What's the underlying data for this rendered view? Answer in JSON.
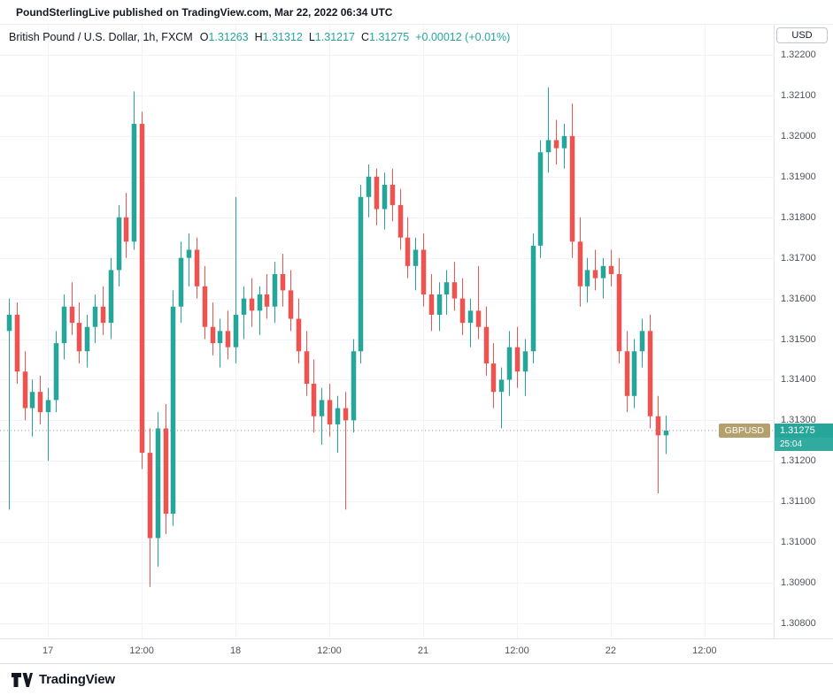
{
  "attribution_bar": {
    "text": "PoundSterlingLive published on TradingView.com, Mar 22, 2022 06:34 UTC"
  },
  "legend": {
    "title": "British Pound / U.S. Dollar, 1h, FXCM",
    "ohlc": [
      {
        "label": "O",
        "value": "1.31263"
      },
      {
        "label": "H",
        "value": "1.31312"
      },
      {
        "label": "L",
        "value": "1.31217"
      },
      {
        "label": "C",
        "value": "1.31275"
      }
    ],
    "change": "+0.00012 (+0.01%)"
  },
  "price_axis": {
    "currency_button": "USD"
  },
  "price_label": {
    "symbol": "GBPUSD",
    "price": "1.31275",
    "countdown": "25:04"
  },
  "footer": {
    "logo_text": "TradingView"
  },
  "colors": {
    "up": "#26a69a",
    "down": "#ef5350",
    "grid": "#f0f3fa",
    "axis_text": "#50535e",
    "text": "#131722",
    "symbol_badge_bg": "#b3a06d",
    "price_line": "#9598a1",
    "border": "#e0e3eb"
  },
  "chart_data": {
    "type": "candlestick",
    "title": "British Pound / U.S. Dollar",
    "symbol": "GBPUSD",
    "interval": "1h",
    "exchange": "FXCM",
    "grid": true,
    "ylim": [
      1.308,
      1.322
    ],
    "current_price": 1.31275,
    "y_ticks": [
      "1.32200",
      "1.32100",
      "1.32000",
      "1.31900",
      "1.31800",
      "1.31700",
      "1.31600",
      "1.31500",
      "1.31400",
      "1.31300",
      "1.31200",
      "1.31100",
      "1.31000",
      "1.30900",
      "1.30800"
    ],
    "x_ticks": [
      {
        "label": "17",
        "index": 5
      },
      {
        "label": "12:00",
        "index": 17
      },
      {
        "label": "18",
        "index": 29
      },
      {
        "label": "12:00",
        "index": 41
      },
      {
        "label": "21",
        "index": 53
      },
      {
        "label": "12:00",
        "index": 65
      },
      {
        "label": "22",
        "index": 77
      },
      {
        "label": "12:00",
        "index": 89
      }
    ],
    "candles_format": [
      "open",
      "high",
      "low",
      "close"
    ],
    "candles": [
      [
        1.3152,
        1.316,
        1.3108,
        1.3156
      ],
      [
        1.3156,
        1.3159,
        1.3139,
        1.3142
      ],
      [
        1.3142,
        1.3147,
        1.313,
        1.3133
      ],
      [
        1.3133,
        1.314,
        1.3126,
        1.3137
      ],
      [
        1.3137,
        1.3141,
        1.3129,
        1.3132
      ],
      [
        1.3132,
        1.3138,
        1.312,
        1.3135
      ],
      [
        1.3135,
        1.3152,
        1.3132,
        1.3149
      ],
      [
        1.3149,
        1.3161,
        1.3145,
        1.3158
      ],
      [
        1.3158,
        1.3164,
        1.3151,
        1.3154
      ],
      [
        1.3154,
        1.3159,
        1.3144,
        1.3147
      ],
      [
        1.3147,
        1.3156,
        1.3143,
        1.3153
      ],
      [
        1.3153,
        1.3161,
        1.3149,
        1.3158
      ],
      [
        1.3158,
        1.3163,
        1.3151,
        1.3154
      ],
      [
        1.3154,
        1.317,
        1.315,
        1.3167
      ],
      [
        1.3167,
        1.3183,
        1.3163,
        1.318
      ],
      [
        1.318,
        1.3186,
        1.317,
        1.3174
      ],
      [
        1.3174,
        1.3211,
        1.3172,
        1.3203
      ],
      [
        1.3203,
        1.3206,
        1.3118,
        1.3122
      ],
      [
        1.3122,
        1.3128,
        1.3089,
        1.3101
      ],
      [
        1.3101,
        1.3132,
        1.3094,
        1.3128
      ],
      [
        1.3128,
        1.3134,
        1.3102,
        1.3107
      ],
      [
        1.3107,
        1.3162,
        1.3104,
        1.3158
      ],
      [
        1.3158,
        1.3174,
        1.3154,
        1.317
      ],
      [
        1.317,
        1.3176,
        1.3163,
        1.3172
      ],
      [
        1.3172,
        1.3175,
        1.316,
        1.3163
      ],
      [
        1.3163,
        1.3168,
        1.315,
        1.3153
      ],
      [
        1.3153,
        1.3159,
        1.3146,
        1.3149
      ],
      [
        1.3149,
        1.3155,
        1.3143,
        1.3152
      ],
      [
        1.3152,
        1.3157,
        1.3145,
        1.3148
      ],
      [
        1.3148,
        1.3185,
        1.3144,
        1.3156
      ],
      [
        1.3156,
        1.3163,
        1.315,
        1.316
      ],
      [
        1.316,
        1.3165,
        1.3153,
        1.3157
      ],
      [
        1.3157,
        1.3163,
        1.3151,
        1.3161
      ],
      [
        1.3161,
        1.3166,
        1.3155,
        1.3158
      ],
      [
        1.3158,
        1.3169,
        1.3154,
        1.3166
      ],
      [
        1.3166,
        1.3171,
        1.3158,
        1.3162
      ],
      [
        1.3162,
        1.3167,
        1.3152,
        1.3155
      ],
      [
        1.3155,
        1.316,
        1.3144,
        1.3147
      ],
      [
        1.3147,
        1.3152,
        1.3136,
        1.3139
      ],
      [
        1.3139,
        1.3145,
        1.3127,
        1.3131
      ],
      [
        1.3131,
        1.3138,
        1.3124,
        1.3135
      ],
      [
        1.3135,
        1.3139,
        1.3126,
        1.3129
      ],
      [
        1.3129,
        1.3136,
        1.3122,
        1.3133
      ],
      [
        1.3133,
        1.3137,
        1.3108,
        1.313
      ],
      [
        1.313,
        1.315,
        1.3127,
        1.3147
      ],
      [
        1.3147,
        1.3188,
        1.3144,
        1.3185
      ],
      [
        1.3185,
        1.3193,
        1.318,
        1.319
      ],
      [
        1.319,
        1.3192,
        1.3178,
        1.3182
      ],
      [
        1.3182,
        1.3191,
        1.3177,
        1.3188
      ],
      [
        1.3188,
        1.3192,
        1.3179,
        1.3183
      ],
      [
        1.3183,
        1.3187,
        1.3172,
        1.3175
      ],
      [
        1.3175,
        1.318,
        1.3165,
        1.3168
      ],
      [
        1.3168,
        1.3175,
        1.3162,
        1.3172
      ],
      [
        1.3172,
        1.3176,
        1.3158,
        1.3161
      ],
      [
        1.3161,
        1.3166,
        1.3152,
        1.3156
      ],
      [
        1.3156,
        1.3164,
        1.3152,
        1.3161
      ],
      [
        1.3161,
        1.3167,
        1.3156,
        1.3164
      ],
      [
        1.3164,
        1.3169,
        1.3157,
        1.316
      ],
      [
        1.316,
        1.3165,
        1.3151,
        1.3154
      ],
      [
        1.3154,
        1.316,
        1.3148,
        1.3157
      ],
      [
        1.3157,
        1.3168,
        1.315,
        1.3153
      ],
      [
        1.3153,
        1.3158,
        1.3141,
        1.3144
      ],
      [
        1.3144,
        1.3149,
        1.3133,
        1.3137
      ],
      [
        1.3137,
        1.3143,
        1.3128,
        1.314
      ],
      [
        1.314,
        1.3152,
        1.3136,
        1.3148
      ],
      [
        1.3148,
        1.3153,
        1.3138,
        1.3142
      ],
      [
        1.3142,
        1.315,
        1.3136,
        1.3147
      ],
      [
        1.3147,
        1.3176,
        1.3144,
        1.3173
      ],
      [
        1.3173,
        1.3199,
        1.317,
        1.3196
      ],
      [
        1.3196,
        1.3212,
        1.3191,
        1.3199
      ],
      [
        1.3199,
        1.3204,
        1.3193,
        1.3197
      ],
      [
        1.3197,
        1.3203,
        1.3192,
        1.32
      ],
      [
        1.32,
        1.3208,
        1.317,
        1.3174
      ],
      [
        1.3174,
        1.318,
        1.3158,
        1.3163
      ],
      [
        1.3163,
        1.317,
        1.3159,
        1.3167
      ],
      [
        1.3167,
        1.3172,
        1.3162,
        1.3165
      ],
      [
        1.3165,
        1.317,
        1.316,
        1.3168
      ],
      [
        1.3168,
        1.3172,
        1.3163,
        1.3166
      ],
      [
        1.3166,
        1.317,
        1.3144,
        1.3147
      ],
      [
        1.3147,
        1.3152,
        1.3132,
        1.3136
      ],
      [
        1.3136,
        1.315,
        1.3133,
        1.3147
      ],
      [
        1.3147,
        1.3155,
        1.3143,
        1.3152
      ],
      [
        1.3152,
        1.3156,
        1.3128,
        1.3131
      ],
      [
        1.3131,
        1.3136,
        1.3112,
        1.31263
      ],
      [
        1.31263,
        1.31312,
        1.31217,
        1.31275
      ]
    ]
  }
}
